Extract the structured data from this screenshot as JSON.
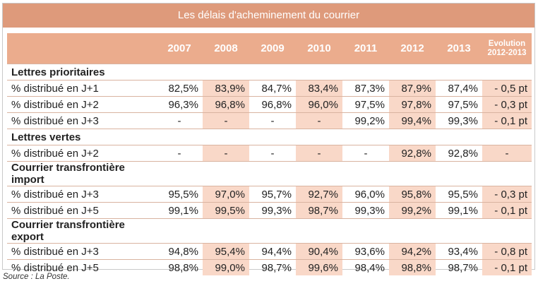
{
  "title": "Les délais d'acheminement du courrier",
  "header": {
    "years": [
      "2007",
      "2008",
      "2009",
      "2010",
      "2011",
      "2012",
      "2013"
    ],
    "evolution_line1": "Evolution",
    "evolution_line2": "2012-2013"
  },
  "sections": [
    {
      "name": "Lettres prioritaires",
      "rows": [
        {
          "label": "% distribué en J+1",
          "values": [
            "82,5%",
            "83,9%",
            "84,7%",
            "83,4%",
            "87,3%",
            "87,9%",
            "87,4%"
          ],
          "evolution": "- 0,5 pt"
        },
        {
          "label": "% distribué en J+2",
          "values": [
            "96,3%",
            "96,8%",
            "96,8%",
            "96,0%",
            "97,5%",
            "97,8%",
            "97,5%"
          ],
          "evolution": "- 0,3 pt"
        },
        {
          "label": "% distribué en J+3",
          "values": [
            "-",
            "-",
            "-",
            "-",
            "99,2%",
            "99,4%",
            "99,3%"
          ],
          "evolution": "- 0,1 pt"
        }
      ]
    },
    {
      "name": "Lettres vertes",
      "rows": [
        {
          "label": "% distribué en J+2",
          "values": [
            "-",
            "-",
            "-",
            "-",
            "-",
            "92,8%",
            "92,8%"
          ],
          "evolution": "-"
        }
      ]
    },
    {
      "name": "Courrier transfrontière import",
      "rows": [
        {
          "label": "% distribué en J+3",
          "values": [
            "95,5%",
            "97,0%",
            "95,7%",
            "92,7%",
            "96,0%",
            "95,8%",
            "95,5%"
          ],
          "evolution": "- 0,3 pt"
        },
        {
          "label": "% distribué en J+5",
          "values": [
            "99,1%",
            "99,5%",
            "99,3%",
            "98,7%",
            "99,3%",
            "99,2%",
            "99,1%"
          ],
          "evolution": "- 0,1 pt"
        }
      ]
    },
    {
      "name": "Courrier transfrontière export",
      "rows": [
        {
          "label": "% distribué en J+3",
          "values": [
            "94,8%",
            "95,4%",
            "94,4%",
            "90,4%",
            "93,6%",
            "94,2%",
            "93,4%"
          ],
          "evolution": "- 0,8 pt"
        },
        {
          "label": "% distribué en J+5",
          "values": [
            "98,8%",
            "99,0%",
            "98,7%",
            "99,6%",
            "98,4%",
            "98,8%",
            "98,7%"
          ],
          "evolution": "- 0,1 pt"
        }
      ]
    }
  ],
  "source": "Source : La Poste."
}
